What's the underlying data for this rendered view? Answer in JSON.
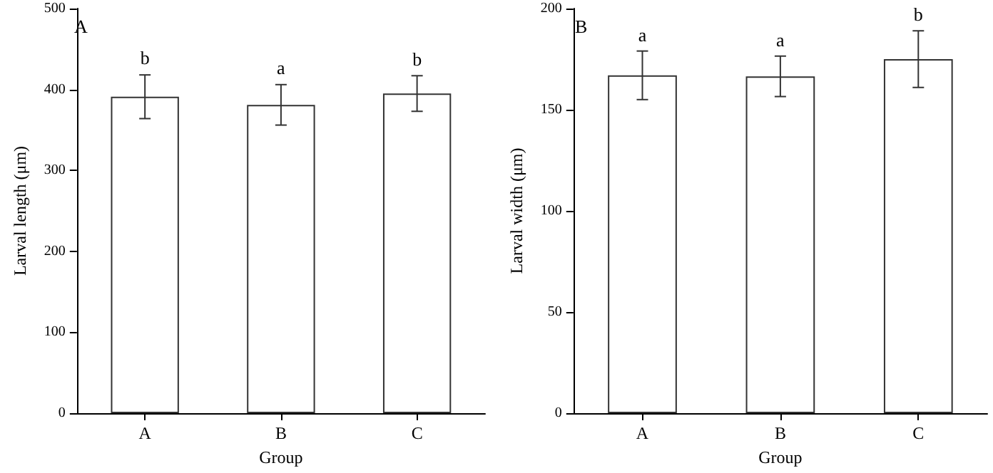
{
  "chart_data": [
    {
      "type": "bar",
      "categories": [
        "A",
        "B",
        "C"
      ],
      "values": [
        391,
        381,
        395
      ],
      "errors": [
        27,
        25,
        22
      ],
      "color": "#ffffff",
      "xlabel": "Group",
      "ylabel": "Larval length (μm)",
      "ylim": [
        0,
        500
      ],
      "yticks": [
        0,
        100,
        200,
        300,
        400,
        500
      ],
      "grid": false,
      "annotations": [
        "A",
        {
          "text": "b",
          "x": "A",
          "y": 419
        },
        {
          "text": "a",
          "x": "B",
          "y": 407
        },
        {
          "text": "b",
          "x": "C",
          "y": 417
        }
      ]
    },
    {
      "type": "bar",
      "categories": [
        "A",
        "B",
        "C"
      ],
      "values": [
        167,
        166.5,
        175
      ],
      "errors": [
        12,
        10,
        14
      ],
      "color": "#ffffff",
      "xlabel": "Group",
      "ylabel": "Larval width (μm)",
      "ylim": [
        0,
        200
      ],
      "yticks": [
        0,
        50,
        100,
        150,
        200
      ],
      "grid": false,
      "annotations": [
        "B",
        {
          "text": "a",
          "x": "A",
          "y": 179
        },
        {
          "text": "a",
          "x": "B",
          "y": 176.5
        },
        {
          "text": "b",
          "x": "C",
          "y": 189
        }
      ]
    }
  ]
}
